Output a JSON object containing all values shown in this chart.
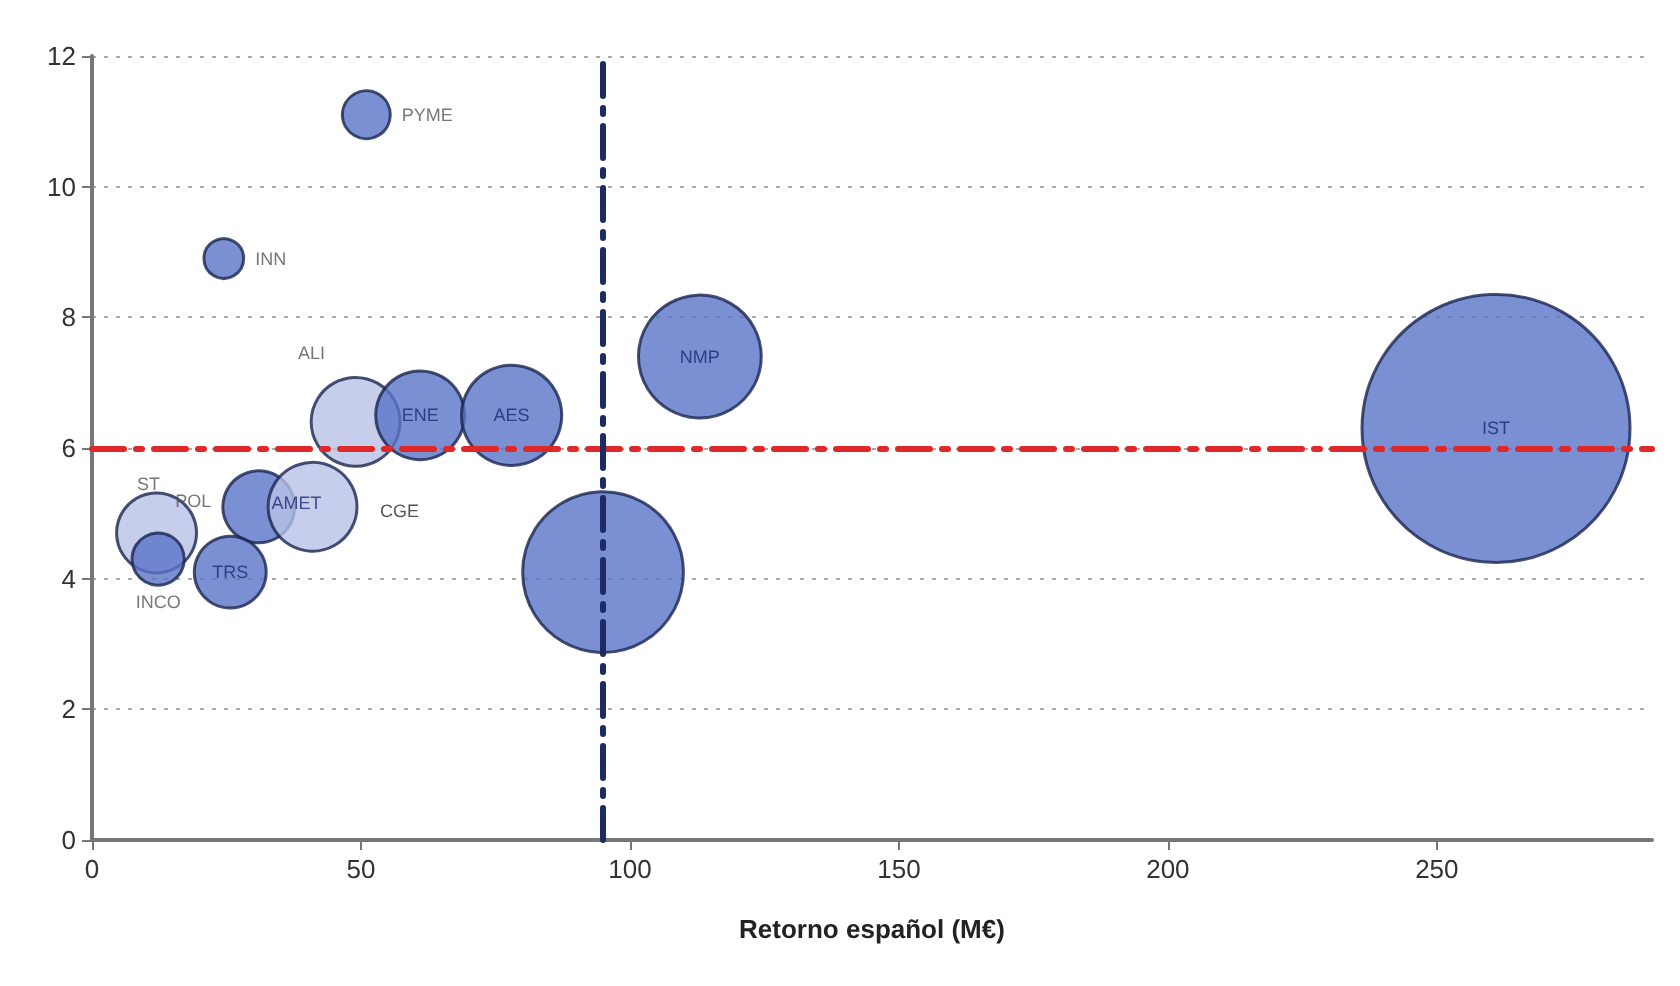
{
  "chart_data": {
    "type": "bubble",
    "xlabel": "Retorno español (M€)",
    "xlim": [
      0,
      290
    ],
    "xticks": [
      0,
      50,
      100,
      150,
      200,
      250
    ],
    "ylim": [
      0,
      12
    ],
    "yticks": [
      0,
      2,
      4,
      6,
      8,
      10,
      12
    ],
    "grid": "y",
    "marker": "circle",
    "series": [
      {
        "x": [
          51,
          24.5,
          113,
          261,
          49,
          61,
          78,
          95,
          31,
          41,
          12,
          12.3,
          25.7
        ],
        "values": [
          11.1,
          8.9,
          7.4,
          6.3,
          6.4,
          6.5,
          6.5,
          4.1,
          5.1,
          5.1,
          4.7,
          4.3,
          4.1
        ],
        "sizes": [
          0.032,
          0.022,
          0.21,
          1,
          0.11,
          0.11,
          0.14,
          0.36,
          0.072,
          0.11,
          0.089,
          0.038,
          0.072
        ],
        "colors": [
          "#5a73c8",
          "#5a73c8",
          "#5a73c8",
          "#5a73c8",
          "#b8c2e6",
          "#5a73c8",
          "#5a73c8",
          "#5a73c8",
          "#5a73c8",
          "#b8c2e6",
          "#b8c2e6",
          "#5a73c8",
          "#5a73c8"
        ],
        "value_labels": [
          "PYME",
          "INN",
          "NMP",
          "IST",
          "ALI",
          "ENE",
          "AES",
          null,
          "POL",
          "AMET",
          "ST",
          "INCO",
          "TRS"
        ]
      }
    ],
    "annotations": [
      "CGE"
    ],
    "ref_lines": [
      {
        "axis": "y",
        "value": 6,
        "color": "#e02828",
        "line_style": "dashed"
      },
      {
        "axis": "x",
        "value": 95,
        "color": "#1c2a66",
        "line_style": "dashed"
      }
    ]
  }
}
